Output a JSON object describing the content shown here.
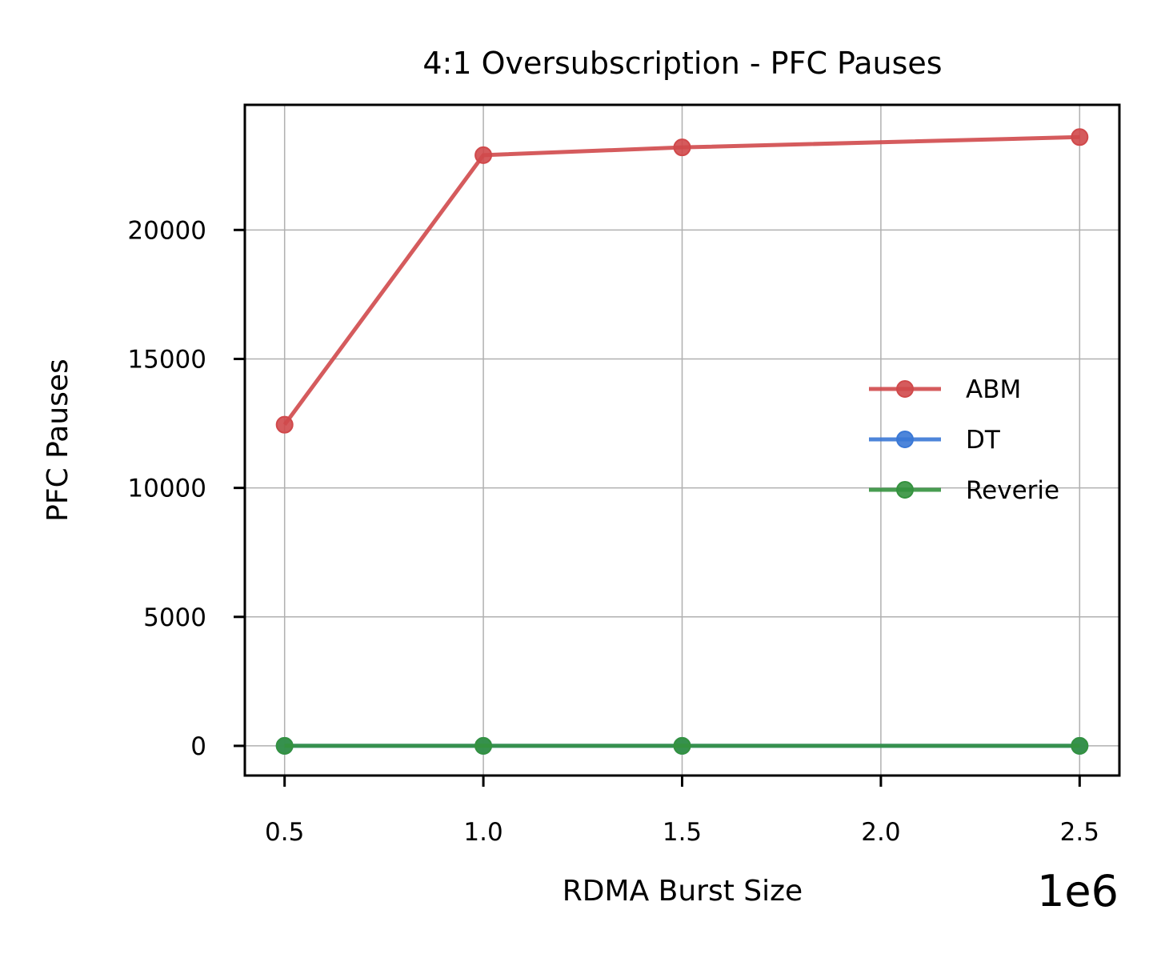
{
  "chart_data": {
    "type": "line",
    "title": "4:1 Oversubscription - PFC Pauses",
    "xlabel": "RDMA Burst Size",
    "ylabel": "PFC Pauses",
    "x_offset_label": "1e6",
    "x_scale_factor": 1000000,
    "x": [
      500000,
      1000000,
      1500000,
      2500000
    ],
    "xlim": [
      400000,
      2600000
    ],
    "ylim": [
      -1150,
      24850
    ],
    "x_ticks": [
      500000,
      1000000,
      1500000,
      2000000,
      2500000
    ],
    "x_tick_labels": [
      "0.5",
      "1.0",
      "1.5",
      "2.0",
      "2.5"
    ],
    "y_ticks": [
      0,
      5000,
      10000,
      15000,
      20000
    ],
    "y_tick_labels": [
      "0",
      "5000",
      "10000",
      "15000",
      "20000"
    ],
    "grid": true,
    "legend_position": "center-right",
    "series": [
      {
        "name": "ABM",
        "color": "#d0494b",
        "values": [
          12450,
          22900,
          23200,
          23600
        ]
      },
      {
        "name": "DT",
        "color": "#3a78d6",
        "values": [
          0,
          0,
          0,
          0
        ]
      },
      {
        "name": "Reverie",
        "color": "#34923e",
        "values": [
          0,
          0,
          0,
          0
        ]
      }
    ]
  }
}
